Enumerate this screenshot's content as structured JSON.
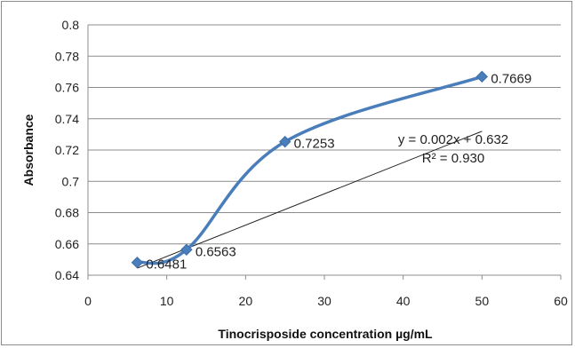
{
  "chart_data": {
    "type": "scatter",
    "title": "",
    "xlabel": "Tinocrisposide concentration µg/mL",
    "ylabel": "Absorbance",
    "xlim": [
      0,
      60
    ],
    "ylim": [
      0.64,
      0.8
    ],
    "x_ticks": [
      "0",
      "10",
      "20",
      "30",
      "40",
      "50",
      "60"
    ],
    "y_ticks": [
      "0.64",
      "0.66",
      "0.68",
      "0.7",
      "0.72",
      "0.74",
      "0.76",
      "0.78",
      "0.8"
    ],
    "grid": "horizontal",
    "series": [
      {
        "x": [
          6.25,
          12.5,
          25,
          50
        ],
        "y": [
          0.6481,
          0.6563,
          0.7253,
          0.7669
        ],
        "labels": [
          "0.6481",
          "0.6563",
          "0.7253",
          "0.7669"
        ],
        "color": "#4a7ebb",
        "marker": "diamond",
        "line": "smoothed"
      }
    ],
    "trendline": {
      "type": "linear",
      "x_range": [
        6.25,
        50
      ],
      "slope": 0.002,
      "intercept": 0.632,
      "color": "#222222",
      "equation": "y = 0.002x + 0.632",
      "r_squared": "R² = 0.930"
    }
  }
}
